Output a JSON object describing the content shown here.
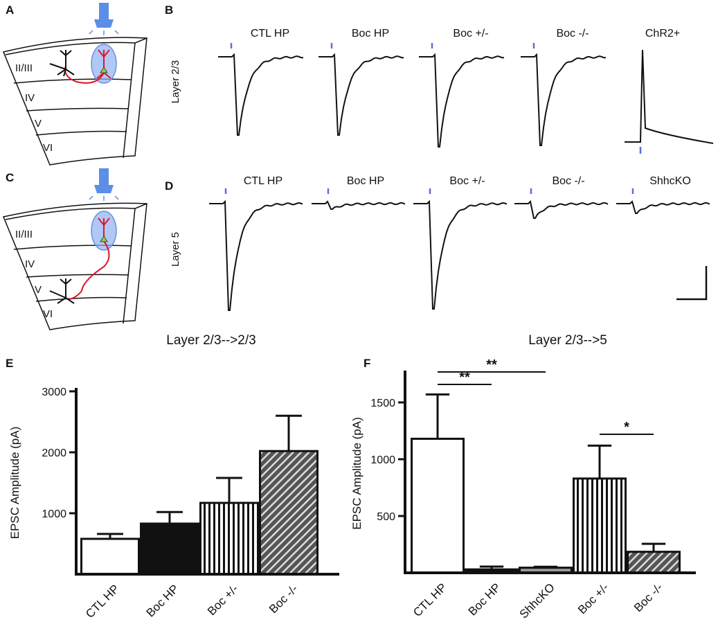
{
  "panels": {
    "letters": [
      "A",
      "B",
      "C",
      "D",
      "E",
      "F"
    ],
    "row_labels": [
      "Layer 2/3",
      "Layer 5"
    ],
    "row_b_titles": [
      "CTL HP",
      "Boc HP",
      "Boc +/-",
      "Boc -/-",
      "ChR2+"
    ],
    "row_d_titles": [
      "CTL HP",
      "Boc HP",
      "Boc +/-",
      "Boc -/-",
      "ShhcKO"
    ],
    "diagram_a_layers": [
      "II/III",
      "IV",
      "V",
      "VI"
    ],
    "diagram_c_layers": [
      "II/III",
      "IV",
      "V",
      "VI"
    ]
  },
  "chart_data": [
    {
      "type": "bar",
      "title": "Layer 2/3-->2/3",
      "y_label": "EPSC Amplitude (pA)",
      "categories": [
        "CTL HP",
        "Boc HP",
        "Boc +/-",
        "Boc -/-"
      ],
      "values": [
        580,
        830,
        1170,
        2020
      ],
      "errors": [
        80,
        190,
        410,
        580
      ],
      "bar_styles": [
        "white",
        "black",
        "vstripe",
        "hatch"
      ],
      "ylim": [
        0,
        3000
      ],
      "yticks": [
        1000,
        2000,
        3000
      ]
    },
    {
      "type": "bar",
      "title": "Layer 2/3-->5",
      "y_label": "EPSC Amplitude (pA)",
      "categories": [
        "CTL HP",
        "Boc HP",
        "ShhcKO",
        "Boc +/-",
        "Boc -/-"
      ],
      "values": [
        1180,
        30,
        45,
        830,
        185
      ],
      "errors": [
        390,
        25,
        8,
        290,
        70
      ],
      "bar_styles": [
        "white",
        "black",
        "gray",
        "vstripe",
        "hatch"
      ],
      "ylim": [
        0,
        1750
      ],
      "yticks": [
        500,
        1000,
        1500
      ],
      "annotations": [
        "**",
        "**",
        "*"
      ]
    }
  ]
}
